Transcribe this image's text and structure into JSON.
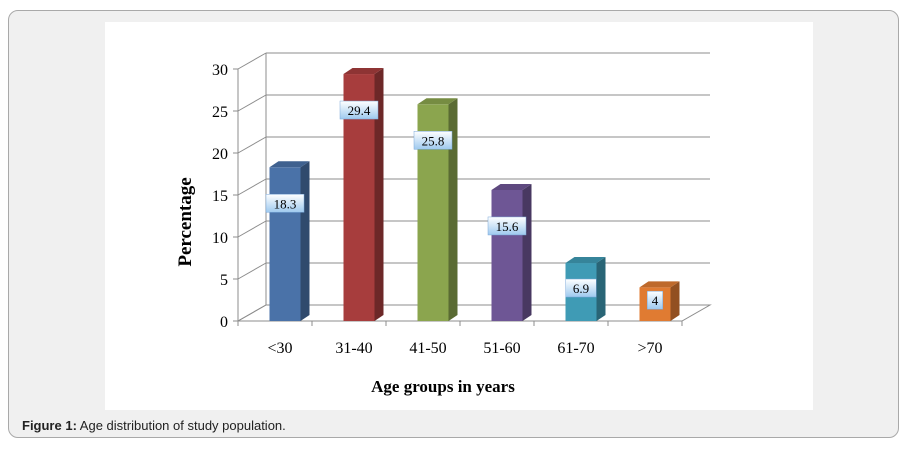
{
  "figure": {
    "caption_label": "Figure 1:",
    "caption_text": " Age distribution of study population."
  },
  "chart_data": {
    "type": "bar",
    "style": "3d",
    "categories": [
      "<30",
      "31-40",
      "41-50",
      "51-60",
      "61-70",
      ">70"
    ],
    "values": [
      18.3,
      29.4,
      25.8,
      15.6,
      6.9,
      4
    ],
    "data_labels": [
      "18.3",
      "29.4",
      "25.8",
      "15.6",
      "6.9",
      "4"
    ],
    "colors": [
      "#4a72a8",
      "#a73d3d",
      "#8ba54e",
      "#6e5695",
      "#3f9bb5",
      "#e07b32"
    ],
    "xlabel": "Age groups in years",
    "ylabel": "Percentage",
    "ylim": [
      0,
      30
    ],
    "yticks": [
      0,
      5,
      10,
      15,
      20,
      25,
      30
    ],
    "grid": true,
    "legend": "none"
  }
}
